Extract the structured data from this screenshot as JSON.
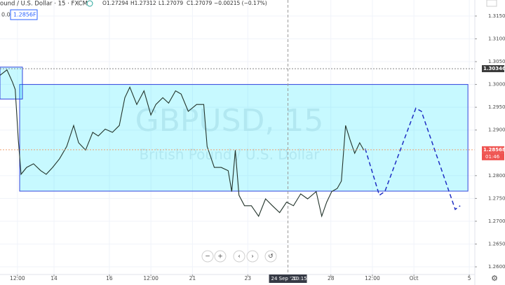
{
  "chart_data": {
    "type": "line",
    "symbol": "ound / U.S. Dollar · 15 · FXCM",
    "ohlc": [
      "O1.27294",
      "H1.27312",
      "L1.27079",
      "C1.27079",
      "−0.00215 (−0.17%)"
    ],
    "indicator_value": "0.0",
    "input_box": "1.2856F",
    "watermark": "GBPUSD, 15",
    "watermark_subtitle": "British Pound / U.S. Dollar",
    "xlim": [
      -1.95,
      15.2
    ],
    "ylim": [
      1.25832,
      1.31852
    ],
    "grid": true,
    "xticks": [
      {
        "value": -1.32,
        "label": "12:00"
      },
      {
        "value": 0,
        "label": "14"
      },
      {
        "value": 2,
        "label": "16"
      },
      {
        "value": 3.5,
        "label": "12:00"
      },
      {
        "value": 5,
        "label": "21"
      },
      {
        "value": 7,
        "label": "23"
      },
      {
        "value": 10,
        "label": "28"
      },
      {
        "value": 11.5,
        "label": "12:00"
      },
      {
        "value": 13,
        "label": "Oct"
      },
      {
        "value": 15,
        "label": "5"
      }
    ],
    "yticks": [
      {
        "value": 1.26,
        "label": "1.26000"
      },
      {
        "value": 1.265,
        "label": "1.26500"
      },
      {
        "value": 1.27,
        "label": "1.27000"
      },
      {
        "value": 1.275,
        "label": "1.27500"
      },
      {
        "value": 1.28,
        "label": "1.28000"
      },
      {
        "value": 1.29,
        "label": "1.29000"
      },
      {
        "value": 1.295,
        "label": "1.29500"
      },
      {
        "value": 1.3,
        "label": "1.30000"
      },
      {
        "value": 1.305,
        "label": "1.30500"
      },
      {
        "value": 1.31,
        "label": "1.31000"
      },
      {
        "value": 1.315,
        "label": "1.31500"
      }
    ],
    "series": [
      {
        "color": "#23342b",
        "dashed": false,
        "x": [
          -1.95,
          -1.7,
          -1.5,
          -1.4,
          -1.29,
          -1.19,
          -0.99,
          -0.74,
          -0.48,
          -0.28,
          -0.05,
          0.2,
          0.46,
          0.71,
          0.89,
          1.14,
          1.4,
          1.6,
          1.85,
          2.11,
          2.36,
          2.56,
          2.74,
          2.99,
          3.25,
          3.5,
          3.68,
          3.93,
          4.14,
          4.39,
          4.59,
          4.85,
          5.15,
          5.41,
          5.53,
          5.79,
          6.04,
          6.29,
          6.42,
          6.55,
          6.68,
          6.88,
          7.13,
          7.39,
          7.64,
          7.89,
          8.15,
          8.4,
          8.65,
          8.91,
          9.16,
          9.47,
          9.67,
          9.85,
          10.03,
          10.23,
          10.38,
          10.53,
          10.69,
          10.86,
          11.04,
          11.19
        ],
        "values": [
          1.302,
          1.3032,
          1.3005,
          1.2989,
          1.2879,
          1.2803,
          1.2818,
          1.2826,
          1.2811,
          1.2803,
          1.2818,
          1.2837,
          1.2864,
          1.291,
          1.2872,
          1.2856,
          1.2895,
          1.2887,
          1.2902,
          1.2895,
          1.291,
          1.2971,
          1.2994,
          1.2956,
          1.2986,
          1.2933,
          1.2956,
          1.2971,
          1.2959,
          1.2986,
          1.2979,
          1.2941,
          1.2956,
          1.2956,
          1.2864,
          1.2818,
          1.2818,
          1.2811,
          1.2765,
          1.2856,
          1.2757,
          1.2734,
          1.2734,
          1.2711,
          1.2749,
          1.2734,
          1.2719,
          1.2742,
          1.2734,
          1.276,
          1.2749,
          1.2765,
          1.2711,
          1.2742,
          1.2765,
          1.2772,
          1.2788,
          1.291,
          1.2879,
          1.2849,
          1.2872,
          1.2856
        ]
      },
      {
        "color": "#1f2fc4",
        "dashed": true,
        "x": [
          11.24,
          11.75,
          11.95,
          13.07,
          13.27,
          14.49,
          14.67
        ],
        "values": [
          1.2859,
          1.2757,
          1.2765,
          1.2948,
          1.2941,
          1.2726,
          1.2734
        ]
      }
    ],
    "boxes": [
      {
        "x": [
          -1.24,
          14.95
        ],
        "y": [
          1.3,
          1.2766
        ],
        "color": "#3344dd"
      },
      {
        "x": [
          -1.95,
          -1.14
        ],
        "y": [
          1.3038,
          1.2968
        ],
        "color": "#3344dd"
      }
    ],
    "price_lines": [
      {
        "value": 1.30346,
        "color": "#888888",
        "badge_color": "#3a3a3a"
      },
      {
        "value": 1.28568,
        "color": "#f0a070",
        "badge_color": "#ef5350"
      }
    ],
    "countdown": "01:46",
    "crosshair": {
      "x": 8.45,
      "date": "24 Sep '20",
      "time": "10:15"
    }
  }
}
